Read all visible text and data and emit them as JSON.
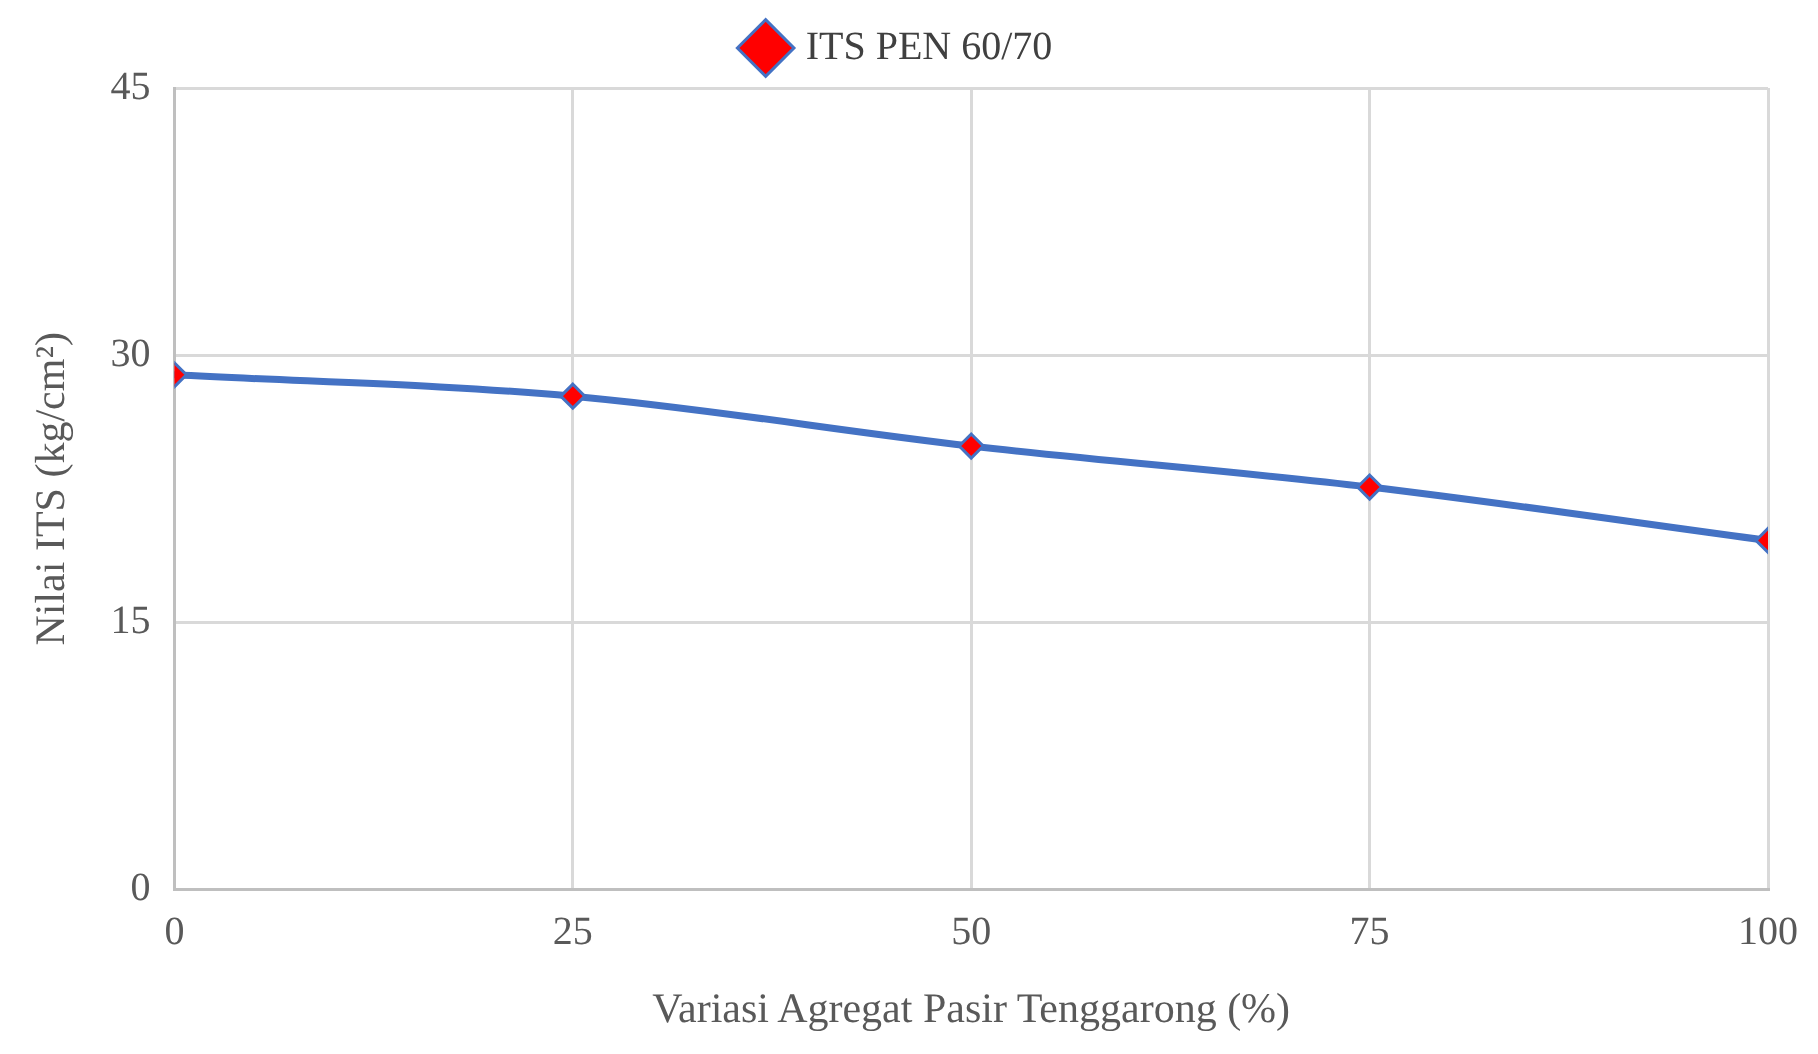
{
  "chart_data": {
    "type": "line",
    "xlabel": "Variasi Agregat Pasir Tenggarong (%)",
    "ylabel": "Nilai ITS (kg/cm²)",
    "x": [
      0,
      25,
      50,
      75,
      100
    ],
    "series": [
      {
        "name": "ITS PEN 60/70",
        "color": "#4472c4",
        "colors": [
          "#ff0000",
          "#ff0000",
          "#ff0000",
          "#ff0000",
          "#ff0000"
        ],
        "values": [
          28.9,
          27.7,
          24.9,
          22.6,
          19.6
        ]
      }
    ],
    "xlim": [
      0,
      100
    ],
    "xticks": [
      0,
      25,
      50,
      75,
      100
    ],
    "ylim": [
      0,
      45
    ],
    "yticks": [
      0,
      15,
      30,
      45
    ],
    "grid": true,
    "legend": "top",
    "marker": "diamond",
    "line_style": "solid"
  }
}
